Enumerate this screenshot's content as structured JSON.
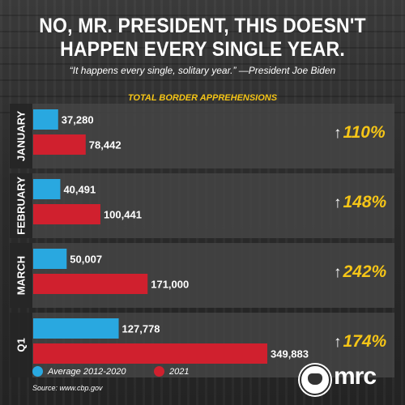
{
  "header": {
    "title_line1": "NO, MR. PRESIDENT, THIS DOESN'T",
    "title_line2": "HAPPEN EVERY SINGLE YEAR.",
    "quote": "“It happens every single, solitary year.” —President Joe Biden"
  },
  "colors": {
    "series_average": "#29a8e0",
    "series_2021": "#d0202e",
    "accent_yellow": "#f5c517",
    "background": "#2b2b2b"
  },
  "chart_data": {
    "type": "bar",
    "orientation": "horizontal",
    "title": "TOTAL BORDER APPREHENSIONS",
    "categories": [
      "JANUARY",
      "FEBRUARY",
      "MARCH",
      "Q1"
    ],
    "series": [
      {
        "name": "Average 2012-2020",
        "values": [
          37280,
          40491,
          50007,
          127778
        ],
        "labels": [
          "37,280",
          "40,491",
          "50,007",
          "127,778"
        ]
      },
      {
        "name": "2021",
        "values": [
          78442,
          100441,
          171000,
          349883
        ],
        "labels": [
          "78,442",
          "100,441",
          "171,000",
          "349,883"
        ]
      }
    ],
    "changes": [
      "110%",
      "148%",
      "242%",
      "174%"
    ],
    "legend": "bottom-left",
    "grid": false
  },
  "footer": {
    "source": "Source: www.cbp.gov",
    "logo_text": "mrc",
    "logo_icon": "bulldog-icon"
  }
}
